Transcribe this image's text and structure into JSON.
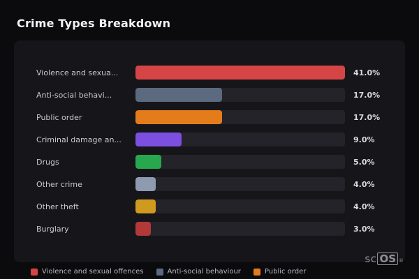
{
  "page": {
    "title": "Crime Types Breakdown"
  },
  "chart_data": {
    "type": "bar",
    "orientation": "horizontal",
    "title": "Crime Types Breakdown",
    "categories": [
      "Violence and sexua...",
      "Anti-social behavi...",
      "Public order",
      "Criminal damage an...",
      "Drugs",
      "Other crime",
      "Other theft",
      "Burglary"
    ],
    "values": [
      41.0,
      17.0,
      17.0,
      9.0,
      5.0,
      4.0,
      4.0,
      3.0
    ],
    "value_labels": [
      "41.0%",
      "17.0%",
      "17.0%",
      "9.0%",
      "5.0%",
      "4.0%",
      "4.0%",
      "3.0%"
    ],
    "colors": [
      "#d64545",
      "#5c6a80",
      "#e57c1b",
      "#7c4fe0",
      "#27a84e",
      "#8e9ab0",
      "#cf9b1e",
      "#b33939"
    ],
    "track_color": "#232329",
    "xlim": [
      0,
      41
    ],
    "grid": false,
    "legend_position": "bottom",
    "legend": [
      {
        "label": "Violence and sexual offences",
        "color": "#d64545"
      },
      {
        "label": "Anti-social behaviour",
        "color": "#5c6a80"
      },
      {
        "label": "Public order",
        "color": "#e57c1b"
      }
    ]
  },
  "branding": {
    "logo_prefix": "sc",
    "logo_suffix": "OS",
    "registered_mark": "®"
  }
}
